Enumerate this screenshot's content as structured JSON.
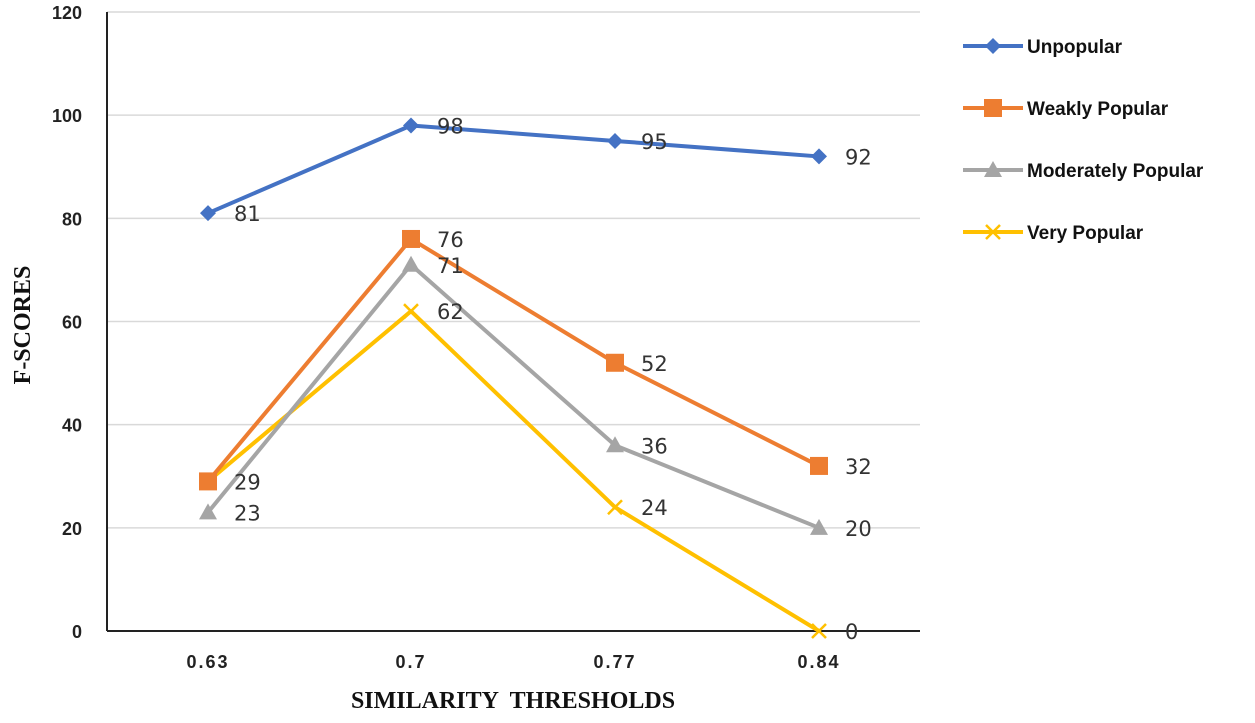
{
  "chart_data": {
    "type": "line",
    "title": "",
    "xlabel": "SIMILARITY  THRESHOLDS",
    "ylabel": "F-SCORES",
    "categories": [
      "0.63",
      "0.7",
      "0.77",
      "0.84"
    ],
    "ylim": [
      0,
      120
    ],
    "yticks": [
      0,
      20,
      40,
      60,
      80,
      100,
      120
    ],
    "grid": true,
    "legend_position": "right",
    "series": [
      {
        "name": "Unpopular",
        "values": [
          81,
          98,
          95,
          92
        ],
        "color": "#4472C4",
        "marker": "diamond"
      },
      {
        "name": "Weakly Popular",
        "values": [
          29,
          76,
          52,
          32
        ],
        "color": "#ED7D31",
        "marker": "square"
      },
      {
        "name": "Moderately Popular",
        "values": [
          23,
          71,
          36,
          20
        ],
        "color": "#A5A5A5",
        "marker": "triangle"
      },
      {
        "name": "Very Popular",
        "values": [
          29,
          62,
          24,
          0
        ],
        "color": "#FFC000",
        "marker": "x"
      }
    ],
    "data_labels": {
      "Unpopular": [
        "81",
        "98",
        "95",
        "92"
      ],
      "Weakly Popular": [
        "29",
        "76",
        "52",
        "32"
      ],
      "Moderately Popular": [
        "23",
        "71",
        "36",
        "20"
      ],
      "Very Popular": [
        "",
        "62",
        "24",
        "0"
      ]
    }
  }
}
